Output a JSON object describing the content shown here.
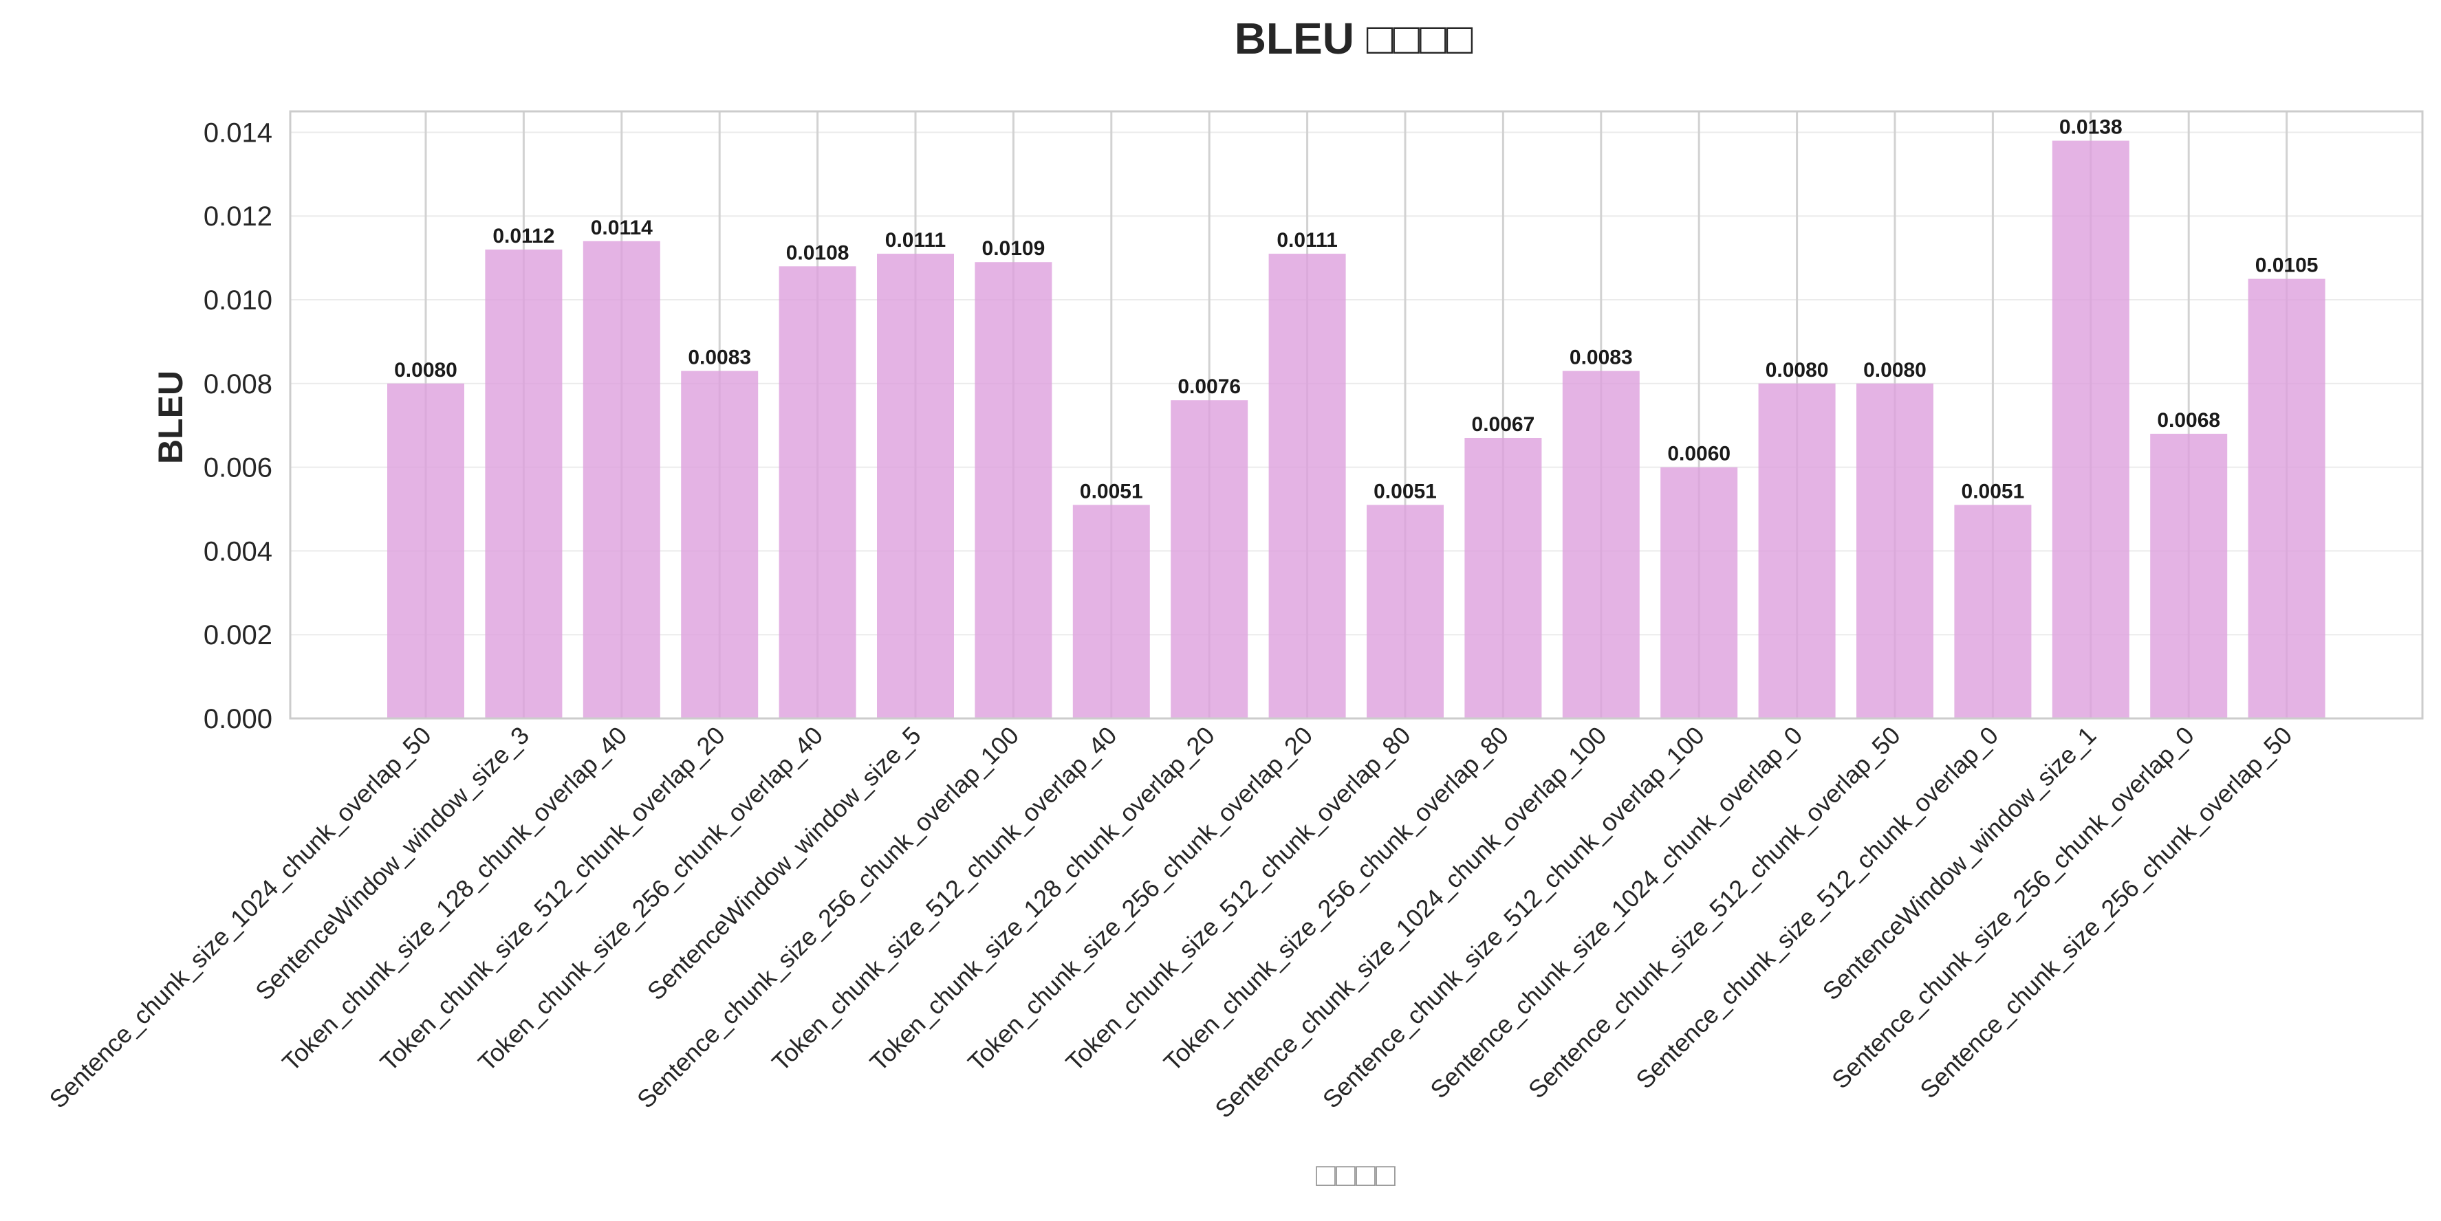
{
  "chart_data": {
    "type": "bar",
    "title": "BLEU □□□□",
    "xlabel": "□□□□",
    "ylabel": "BLEU",
    "ylim": [
      0,
      0.0145
    ],
    "yticks": [
      "0.000",
      "0.002",
      "0.004",
      "0.006",
      "0.008",
      "0.010",
      "0.012",
      "0.014"
    ],
    "grid": true,
    "bar_color": "#dda0dd",
    "categories": [
      "Sentence_chunk_size_1024_chunk_overlap_50",
      "SentenceWindow_window_size_3",
      "Token_chunk_size_128_chunk_overlap_40",
      "Token_chunk_size_512_chunk_overlap_20",
      "Token_chunk_size_256_chunk_overlap_40",
      "SentenceWindow_window_size_5",
      "Sentence_chunk_size_256_chunk_overlap_100",
      "Token_chunk_size_512_chunk_overlap_40",
      "Token_chunk_size_128_chunk_overlap_20",
      "Token_chunk_size_256_chunk_overlap_20",
      "Token_chunk_size_512_chunk_overlap_80",
      "Token_chunk_size_256_chunk_overlap_80",
      "Sentence_chunk_size_1024_chunk_overlap_100",
      "Sentence_chunk_size_512_chunk_overlap_100",
      "Sentence_chunk_size_1024_chunk_overlap_0",
      "Sentence_chunk_size_512_chunk_overlap_50",
      "Sentence_chunk_size_512_chunk_overlap_0",
      "SentenceWindow_window_size_1",
      "Sentence_chunk_size_256_chunk_overlap_0",
      "Sentence_chunk_size_256_chunk_overlap_50"
    ],
    "values": [
      0.008,
      0.0112,
      0.0114,
      0.0083,
      0.0108,
      0.0111,
      0.0109,
      0.0051,
      0.0076,
      0.0111,
      0.0051,
      0.0067,
      0.0083,
      0.006,
      0.008,
      0.008,
      0.0051,
      0.0138,
      0.0068,
      0.0105
    ],
    "value_labels": [
      "0.0080",
      "0.0112",
      "0.0114",
      "0.0083",
      "0.0108",
      "0.0111",
      "0.0109",
      "0.0051",
      "0.0076",
      "0.0111",
      "0.0051",
      "0.0067",
      "0.0083",
      "0.0060",
      "0.0080",
      "0.0080",
      "0.0051",
      "0.0138",
      "0.0068",
      "0.0105"
    ]
  }
}
